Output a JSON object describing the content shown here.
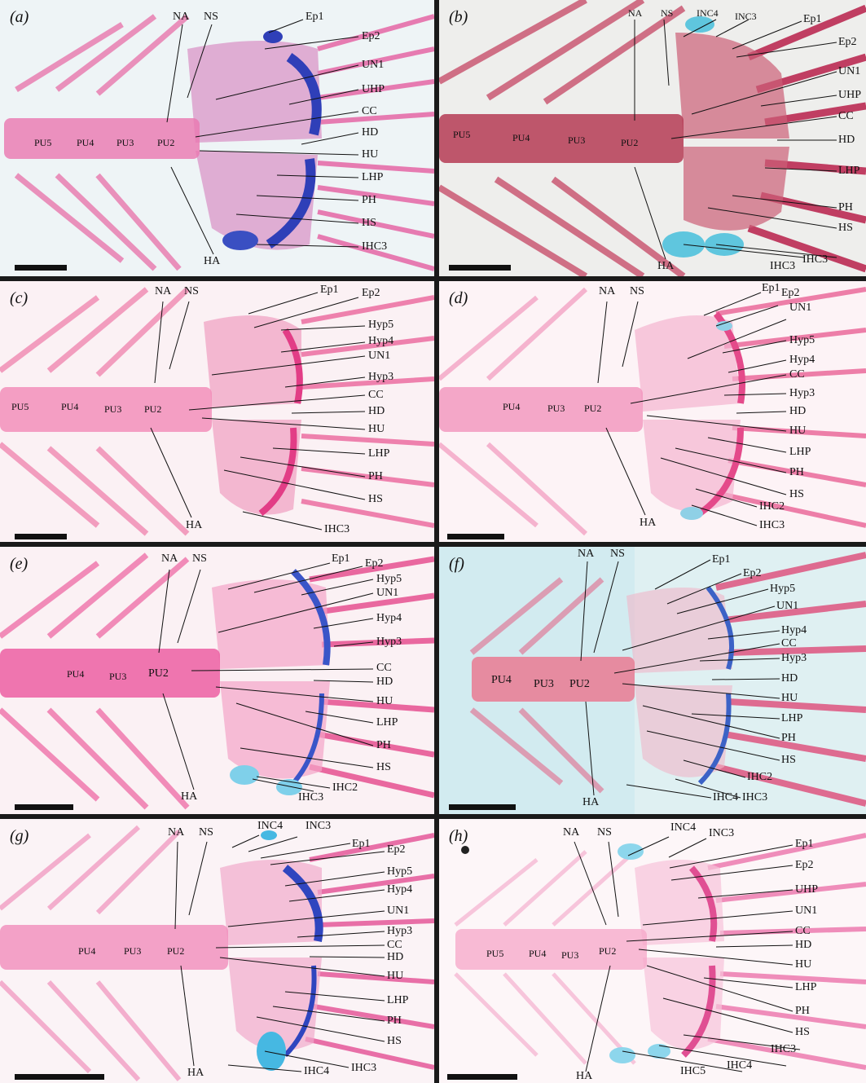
{
  "panels": [
    {
      "id": "a",
      "label": "(a)",
      "vertebrae": [
        "PU5",
        "PU4",
        "PU3",
        "PU2"
      ],
      "structures": [
        "NA",
        "NS",
        "Ep1",
        "Ep2",
        "UN1",
        "UHP",
        "CC",
        "HD",
        "HU",
        "LHP",
        "PH",
        "HS",
        "IHC3",
        "HA"
      ]
    },
    {
      "id": "b",
      "label": "(b)",
      "vertebrae": [
        "PU5",
        "PU4",
        "PU3",
        "PU2"
      ],
      "structures": [
        "NA",
        "NS",
        "INC4",
        "INC3",
        "Ep1",
        "Ep2",
        "UN1",
        "UHP",
        "CC",
        "HD",
        "LHP",
        "PH",
        "HS",
        "IHC3",
        "IHC3",
        "HA"
      ]
    },
    {
      "id": "c",
      "label": "(c)",
      "vertebrae": [
        "PU5",
        "PU4",
        "PU3",
        "PU2"
      ],
      "structures": [
        "NA",
        "NS",
        "Ep1",
        "Ep2",
        "Hyp5",
        "Hyp4",
        "UN1",
        "Hyp3",
        "CC",
        "HD",
        "HU",
        "LHP",
        "PH",
        "HS",
        "IHC3",
        "HA"
      ]
    },
    {
      "id": "d",
      "label": "(d)",
      "vertebrae": [
        "PU4",
        "PU3",
        "PU2"
      ],
      "structures": [
        "NA",
        "NS",
        "Ep1",
        "Ep2",
        "UN1",
        "Hyp5",
        "Hyp4",
        "CC",
        "Hyp3",
        "HD",
        "HU",
        "LHP",
        "PH",
        "HS",
        "IHC2",
        "IHC3",
        "HA"
      ]
    },
    {
      "id": "e",
      "label": "(e)",
      "vertebrae": [
        "PU4",
        "PU3",
        "PU2"
      ],
      "structures": [
        "NA",
        "NS",
        "Ep1",
        "Ep2",
        "Hyp5",
        "UN1",
        "Hyp4",
        "Hyp3",
        "CC",
        "HD",
        "HU",
        "LHP",
        "PH",
        "HS",
        "IHC2",
        "IHC3",
        "HA"
      ]
    },
    {
      "id": "f",
      "label": "(f)",
      "vertebrae": [
        "PU4",
        "PU3",
        "PU2"
      ],
      "structures": [
        "NA",
        "NS",
        "Ep1",
        "Ep2",
        "Hyp5",
        "UN1",
        "Hyp4",
        "CC",
        "Hyp3",
        "HD",
        "HU",
        "LHP",
        "PH",
        "HS",
        "IHC2",
        "IHC4",
        "IHC3",
        "HA"
      ]
    },
    {
      "id": "g",
      "label": "(g)",
      "vertebrae": [
        "PU4",
        "PU3",
        "PU2"
      ],
      "structures": [
        "NA",
        "NS",
        "INC4",
        "INC3",
        "Ep1",
        "Ep2",
        "Hyp5",
        "Hyp4",
        "UN1",
        "Hyp3",
        "CC",
        "HD",
        "HU",
        "LHP",
        "PH",
        "HS",
        "IHC4",
        "IHC3",
        "HA"
      ]
    },
    {
      "id": "h",
      "label": "(h)",
      "vertebrae": [
        "PU5",
        "PU4",
        "PU3",
        "PU2"
      ],
      "structures": [
        "NA",
        "NS",
        "INC4",
        "INC3",
        "Ep1",
        "Ep2",
        "UHP",
        "UN1",
        "CC",
        "HD",
        "HU",
        "LHP",
        "PH",
        "HS",
        "IHC5",
        "IHC4",
        "IHC3",
        "HA"
      ]
    }
  ]
}
